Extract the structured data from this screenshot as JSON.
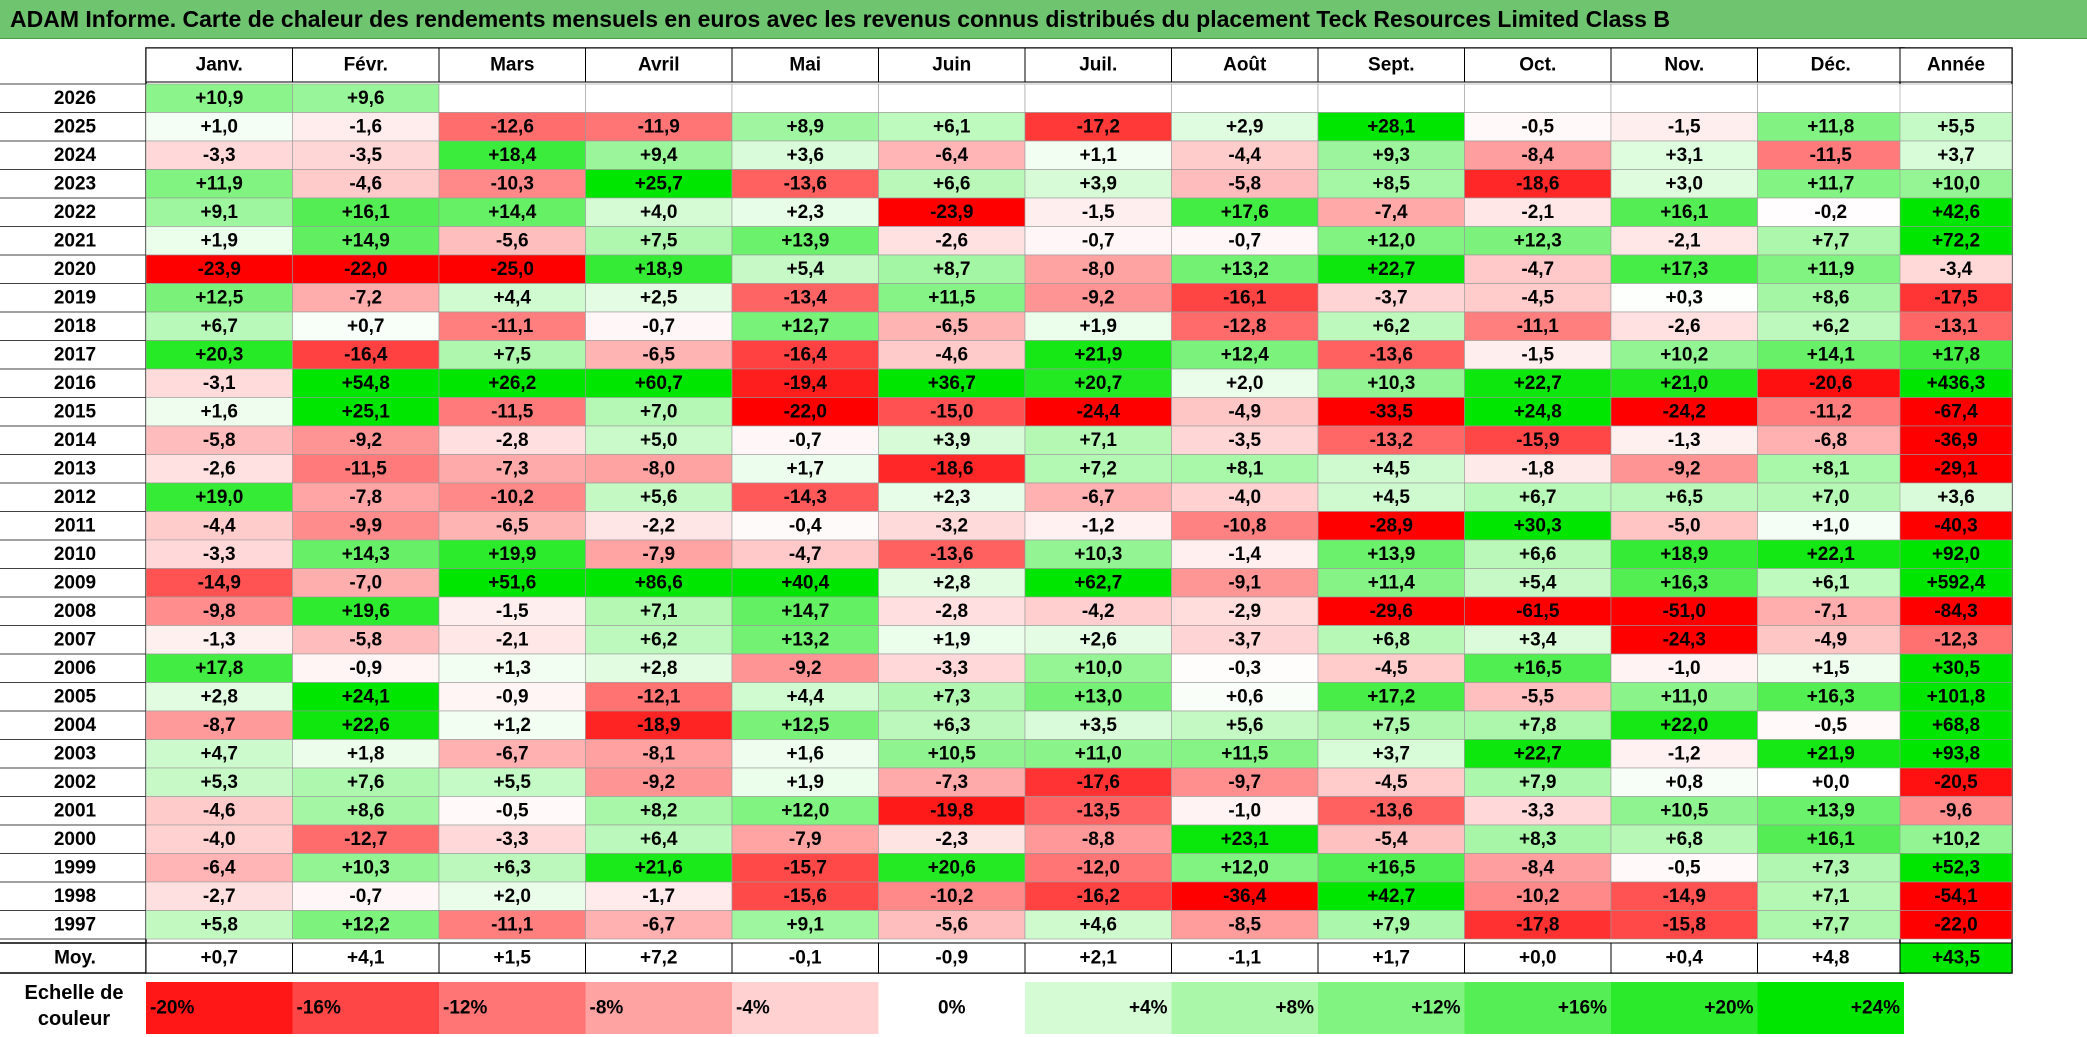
{
  "title": "ADAM Informe. Carte de chaleur des rendements mensuels en euros avec les revenus connus distribués du placement Teck Resources Limited Class B",
  "colors": {
    "title_bar": "#6fc46f",
    "negative": "#ff0000",
    "neutral": "#ffffff",
    "positive": "#00e600"
  },
  "chart_data": {
    "type": "heatmap",
    "months": [
      "Janv.",
      "Févr.",
      "Mars",
      "Avril",
      "Mai",
      "Juin",
      "Juil.",
      "Août",
      "Sept.",
      "Oct.",
      "Nov.",
      "Déc."
    ],
    "annual_header": "Année",
    "average_label": "Moy.",
    "rows": [
      {
        "year": "2026",
        "values": [
          "+10,9",
          "+9,6",
          null,
          null,
          null,
          null,
          null,
          null,
          null,
          null,
          null,
          null
        ],
        "annual": null
      },
      {
        "year": "2025",
        "values": [
          "+1,0",
          "-1,6",
          "-12,6",
          "-11,9",
          "+8,9",
          "+6,1",
          "-17,2",
          "+2,9",
          "+28,1",
          "-0,5",
          "-1,5",
          "+11,8"
        ],
        "annual": "+5,5"
      },
      {
        "year": "2024",
        "values": [
          "-3,3",
          "-3,5",
          "+18,4",
          "+9,4",
          "+3,6",
          "-6,4",
          "+1,1",
          "-4,4",
          "+9,3",
          "-8,4",
          "+3,1",
          "-11,5"
        ],
        "annual": "+3,7"
      },
      {
        "year": "2023",
        "values": [
          "+11,9",
          "-4,6",
          "-10,3",
          "+25,7",
          "-13,6",
          "+6,6",
          "+3,9",
          "-5,8",
          "+8,5",
          "-18,6",
          "+3,0",
          "+11,7"
        ],
        "annual": "+10,0"
      },
      {
        "year": "2022",
        "values": [
          "+9,1",
          "+16,1",
          "+14,4",
          "+4,0",
          "+2,3",
          "-23,9",
          "-1,5",
          "+17,6",
          "-7,4",
          "-2,1",
          "+16,1",
          "-0,2"
        ],
        "annual": "+42,6"
      },
      {
        "year": "2021",
        "values": [
          "+1,9",
          "+14,9",
          "-5,6",
          "+7,5",
          "+13,9",
          "-2,6",
          "-0,7",
          "-0,7",
          "+12,0",
          "+12,3",
          "-2,1",
          "+7,7"
        ],
        "annual": "+72,2"
      },
      {
        "year": "2020",
        "values": [
          "-23,9",
          "-22,0",
          "-25,0",
          "+18,9",
          "+5,4",
          "+8,7",
          "-8,0",
          "+13,2",
          "+22,7",
          "-4,7",
          "+17,3",
          "+11,9"
        ],
        "annual": "-3,4"
      },
      {
        "year": "2019",
        "values": [
          "+12,5",
          "-7,2",
          "+4,4",
          "+2,5",
          "-13,4",
          "+11,5",
          "-9,2",
          "-16,1",
          "-3,7",
          "-4,5",
          "+0,3",
          "+8,6"
        ],
        "annual": "-17,5"
      },
      {
        "year": "2018",
        "values": [
          "+6,7",
          "+0,7",
          "-11,1",
          "-0,7",
          "+12,7",
          "-6,5",
          "+1,9",
          "-12,8",
          "+6,2",
          "-11,1",
          "-2,6",
          "+6,2"
        ],
        "annual": "-13,1"
      },
      {
        "year": "2017",
        "values": [
          "+20,3",
          "-16,4",
          "+7,5",
          "-6,5",
          "-16,4",
          "-4,6",
          "+21,9",
          "+12,4",
          "-13,6",
          "-1,5",
          "+10,2",
          "+14,1"
        ],
        "annual": "+17,8"
      },
      {
        "year": "2016",
        "values": [
          "-3,1",
          "+54,8",
          "+26,2",
          "+60,7",
          "-19,4",
          "+36,7",
          "+20,7",
          "+2,0",
          "+10,3",
          "+22,7",
          "+21,0",
          "-20,6"
        ],
        "annual": "+436,3"
      },
      {
        "year": "2015",
        "values": [
          "+1,6",
          "+25,1",
          "-11,5",
          "+7,0",
          "-22,0",
          "-15,0",
          "-24,4",
          "-4,9",
          "-33,5",
          "+24,8",
          "-24,2",
          "-11,2"
        ],
        "annual": "-67,4"
      },
      {
        "year": "2014",
        "values": [
          "-5,8",
          "-9,2",
          "-2,8",
          "+5,0",
          "-0,7",
          "+3,9",
          "+7,1",
          "-3,5",
          "-13,2",
          "-15,9",
          "-1,3",
          "-6,8"
        ],
        "annual": "-36,9"
      },
      {
        "year": "2013",
        "values": [
          "-2,6",
          "-11,5",
          "-7,3",
          "-8,0",
          "+1,7",
          "-18,6",
          "+7,2",
          "+8,1",
          "+4,5",
          "-1,8",
          "-9,2",
          "+8,1"
        ],
        "annual": "-29,1"
      },
      {
        "year": "2012",
        "values": [
          "+19,0",
          "-7,8",
          "-10,2",
          "+5,6",
          "-14,3",
          "+2,3",
          "-6,7",
          "-4,0",
          "+4,5",
          "+6,7",
          "+6,5",
          "+7,0"
        ],
        "annual": "+3,6"
      },
      {
        "year": "2011",
        "values": [
          "-4,4",
          "-9,9",
          "-6,5",
          "-2,2",
          "-0,4",
          "-3,2",
          "-1,2",
          "-10,8",
          "-28,9",
          "+30,3",
          "-5,0",
          "+1,0"
        ],
        "annual": "-40,3"
      },
      {
        "year": "2010",
        "values": [
          "-3,3",
          "+14,3",
          "+19,9",
          "-7,9",
          "-4,7",
          "-13,6",
          "+10,3",
          "-1,4",
          "+13,9",
          "+6,6",
          "+18,9",
          "+22,1"
        ],
        "annual": "+92,0"
      },
      {
        "year": "2009",
        "values": [
          "-14,9",
          "-7,0",
          "+51,6",
          "+86,6",
          "+40,4",
          "+2,8",
          "+62,7",
          "-9,1",
          "+11,4",
          "+5,4",
          "+16,3",
          "+6,1"
        ],
        "annual": "+592,4"
      },
      {
        "year": "2008",
        "values": [
          "-9,8",
          "+19,6",
          "-1,5",
          "+7,1",
          "+14,7",
          "-2,8",
          "-4,2",
          "-2,9",
          "-29,6",
          "-61,5",
          "-51,0",
          "-7,1"
        ],
        "annual": "-84,3"
      },
      {
        "year": "2007",
        "values": [
          "-1,3",
          "-5,8",
          "-2,1",
          "+6,2",
          "+13,2",
          "+1,9",
          "+2,6",
          "-3,7",
          "+6,8",
          "+3,4",
          "-24,3",
          "-4,9"
        ],
        "annual": "-12,3"
      },
      {
        "year": "2006",
        "values": [
          "+17,8",
          "-0,9",
          "+1,3",
          "+2,8",
          "-9,2",
          "-3,3",
          "+10,0",
          "-0,3",
          "-4,5",
          "+16,5",
          "-1,0",
          "+1,5"
        ],
        "annual": "+30,5"
      },
      {
        "year": "2005",
        "values": [
          "+2,8",
          "+24,1",
          "-0,9",
          "-12,1",
          "+4,4",
          "+7,3",
          "+13,0",
          "+0,6",
          "+17,2",
          "-5,5",
          "+11,0",
          "+16,3"
        ],
        "annual": "+101,8"
      },
      {
        "year": "2004",
        "values": [
          "-8,7",
          "+22,6",
          "+1,2",
          "-18,9",
          "+12,5",
          "+6,3",
          "+3,5",
          "+5,6",
          "+7,5",
          "+7,8",
          "+22,0",
          "-0,5"
        ],
        "annual": "+68,8"
      },
      {
        "year": "2003",
        "values": [
          "+4,7",
          "+1,8",
          "-6,7",
          "-8,1",
          "+1,6",
          "+10,5",
          "+11,0",
          "+11,5",
          "+3,7",
          "+22,7",
          "-1,2",
          "+21,9"
        ],
        "annual": "+93,8"
      },
      {
        "year": "2002",
        "values": [
          "+5,3",
          "+7,6",
          "+5,5",
          "-9,2",
          "+1,9",
          "-7,3",
          "-17,6",
          "-9,7",
          "-4,5",
          "+7,9",
          "+0,8",
          "+0,0"
        ],
        "annual": "-20,5"
      },
      {
        "year": "2001",
        "values": [
          "-4,6",
          "+8,6",
          "-0,5",
          "+8,2",
          "+12,0",
          "-19,8",
          "-13,5",
          "-1,0",
          "-13,6",
          "-3,3",
          "+10,5",
          "+13,9"
        ],
        "annual": "-9,6"
      },
      {
        "year": "2000",
        "values": [
          "-4,0",
          "-12,7",
          "-3,3",
          "+6,4",
          "-7,9",
          "-2,3",
          "-8,8",
          "+23,1",
          "-5,4",
          "+8,3",
          "+6,8",
          "+16,1"
        ],
        "annual": "+10,2"
      },
      {
        "year": "1999",
        "values": [
          "-6,4",
          "+10,3",
          "+6,3",
          "+21,6",
          "-15,7",
          "+20,6",
          "-12,0",
          "+12,0",
          "+16,5",
          "-8,4",
          "-0,5",
          "+7,3"
        ],
        "annual": "+52,3"
      },
      {
        "year": "1998",
        "values": [
          "-2,7",
          "-0,7",
          "+2,0",
          "-1,7",
          "-15,6",
          "-10,2",
          "-16,2",
          "-36,4",
          "+42,7",
          "-10,2",
          "-14,9",
          "+7,1"
        ],
        "annual": "-54,1"
      },
      {
        "year": "1997",
        "values": [
          "+5,8",
          "+12,2",
          "-11,1",
          "-6,7",
          "+9,1",
          "-5,6",
          "+4,6",
          "-8,5",
          "+7,9",
          "-17,8",
          "-15,8",
          "+7,7"
        ],
        "annual": "-22,0"
      }
    ],
    "averages": [
      "+0,7",
      "+4,1",
      "+1,5",
      "+7,2",
      "-0,1",
      "-0,9",
      "+2,1",
      "-1,1",
      "+1,7",
      "+0,0",
      "+0,4",
      "+4,8"
    ],
    "average_annual": "+43,5",
    "scale_label": "Echelle de couleur",
    "scale": [
      "-20%",
      "-16%",
      "-12%",
      "-8%",
      "-4%",
      "0%",
      "+4%",
      "+8%",
      "+12%",
      "+16%",
      "+20%",
      "+24%"
    ]
  }
}
